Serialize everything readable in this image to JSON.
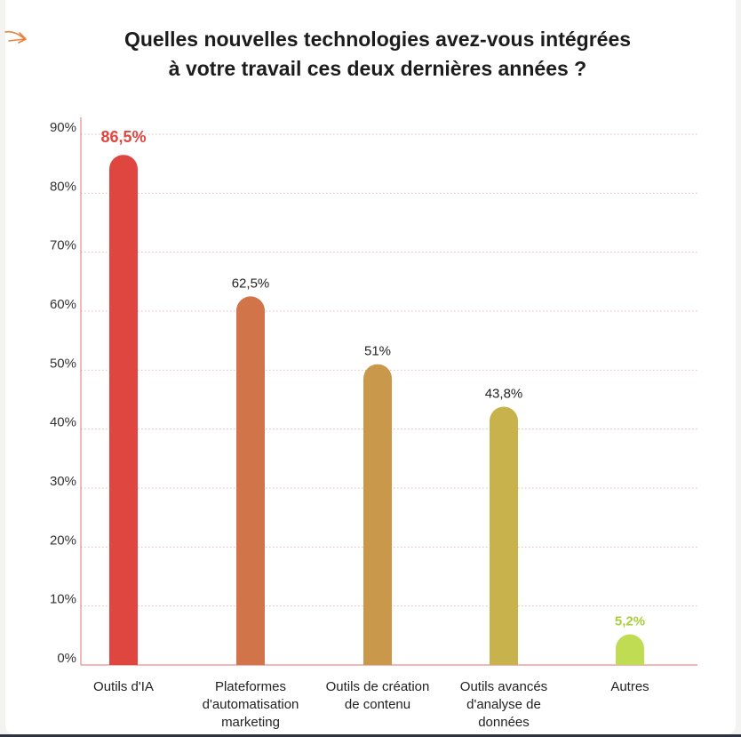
{
  "chart_data": {
    "type": "bar",
    "title": "Quelles nouvelles technologies avez-vous intégrées à votre travail ces deux dernières années ?",
    "title_lines": [
      "Quelles nouvelles technologies avez-vous intégrées",
      "à votre travail ces deux dernières années ?"
    ],
    "xlabel": "",
    "ylabel": "",
    "ylim": [
      0,
      90
    ],
    "yticks": [
      0,
      10,
      20,
      30,
      40,
      50,
      60,
      70,
      80,
      90
    ],
    "ytick_labels": [
      "0%",
      "10%",
      "20%",
      "30%",
      "40%",
      "50%",
      "60%",
      "70%",
      "80%",
      "90%"
    ],
    "grid": "horizontal dotted",
    "legend": "none",
    "categories": [
      [
        "Outils d'IA"
      ],
      [
        "Plateformes",
        "d'automatisation",
        "marketing"
      ],
      [
        "Outils de création",
        "de contenu"
      ],
      [
        "Outils avancés",
        "d'analyse de",
        "données"
      ],
      [
        "Autres"
      ]
    ],
    "values": [
      86.5,
      62.5,
      51,
      43.8,
      5.2
    ],
    "value_labels": [
      "86,5%",
      "62,5%",
      "51%",
      "43,8%",
      "5,2%"
    ],
    "bar_colors": [
      "#e04640",
      "#d2744a",
      "#c9984a",
      "#c8b24b",
      "#c0dc52"
    ],
    "label_colors": [
      "#e04640",
      "#222222",
      "#222222",
      "#222222",
      "#a9cf3a"
    ],
    "axis_color": "#e07070",
    "grid_color": "#f0b8b8"
  }
}
